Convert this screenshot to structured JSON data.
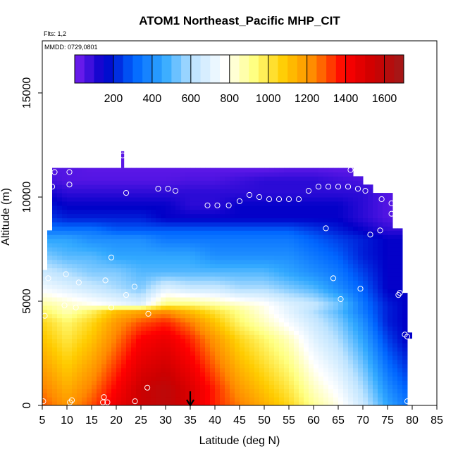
{
  "chart_data": {
    "type": "heatmap",
    "title": "ATOM1 Northeast_Pacific MHP_CIT",
    "flights_note": "Flts: 1,2",
    "dates_note": "MMDD: 0729,0801",
    "xlabel": "Latitude (deg N)",
    "ylabel": "Altitude (m)",
    "xlim": [
      5,
      85
    ],
    "ylim": [
      0,
      17500
    ],
    "x_ticks": [
      "5",
      "10",
      "15",
      "20",
      "25",
      "30",
      "35",
      "40",
      "45",
      "50",
      "55",
      "60",
      "65",
      "70",
      "75",
      "80",
      "85"
    ],
    "y_ticks": [
      "0",
      "5000",
      "10000",
      "15000"
    ],
    "colorbar": {
      "ticks": [
        "200",
        "400",
        "600",
        "800",
        "1000",
        "1200",
        "1400",
        "1600"
      ],
      "range": [
        0,
        1700
      ],
      "colors": [
        "#7a1ff0",
        "#0000c8",
        "#0066ff",
        "#33aaff",
        "#bfe4ff",
        "#ffffff",
        "#ffff80",
        "#ffcc00",
        "#ff8800",
        "#ff0000",
        "#cc0000",
        "#a01a1a"
      ]
    },
    "field": {
      "lat_range": [
        5,
        79
      ],
      "alt_range": [
        0,
        11500
      ],
      "mid_lat": [
        5,
        10,
        15,
        20,
        25,
        30,
        35,
        40,
        45,
        50,
        55,
        60,
        65,
        70,
        75,
        79
      ],
      "lower_lat": [
        5,
        10,
        15,
        20,
        25,
        30,
        35,
        40,
        45,
        50,
        55,
        60,
        65,
        70,
        75,
        79
      ],
      "lower_alt": [
        0,
        800,
        1600,
        2400,
        3200,
        4000,
        4600
      ],
      "lower_values": [
        [
          1300,
          1200,
          1300,
          1450,
          1550,
          1600,
          1500,
          1350,
          1250,
          1150,
          1050,
          900,
          800,
          650,
          450,
          350
        ],
        [
          1250,
          1150,
          1250,
          1400,
          1550,
          1600,
          1500,
          1350,
          1200,
          1100,
          1000,
          850,
          750,
          600,
          400,
          300
        ],
        [
          1200,
          1100,
          1200,
          1350,
          1500,
          1550,
          1450,
          1300,
          1150,
          1050,
          950,
          800,
          700,
          550,
          350,
          250
        ],
        [
          1150,
          1050,
          1150,
          1300,
          1450,
          1500,
          1400,
          1250,
          1100,
          1000,
          900,
          750,
          650,
          500,
          300,
          200
        ],
        [
          1100,
          1000,
          1100,
          1250,
          1400,
          1450,
          1350,
          1200,
          1050,
          950,
          850,
          700,
          600,
          450,
          250,
          150
        ],
        [
          1050,
          950,
          1050,
          1200,
          1300,
          1350,
          1250,
          1100,
          950,
          850,
          750,
          650,
          550,
          400,
          200,
          150
        ],
        [
          950,
          850,
          950,
          1100,
          1150,
          1200,
          1100,
          1000,
          900,
          800,
          700,
          600,
          500,
          350,
          200,
          150
        ]
      ],
      "mid_alt": [
        4800,
        5600,
        6400,
        7200,
        8000,
        8400
      ],
      "mid_values": [
        [
          900,
          850,
          800,
          750,
          700,
          950,
          950,
          900,
          850,
          800,
          700,
          650,
          550,
          350,
          200,
          150
        ],
        [
          750,
          700,
          650,
          600,
          550,
          700,
          650,
          650,
          600,
          600,
          550,
          500,
          400,
          300,
          150,
          150
        ],
        [
          650,
          600,
          550,
          550,
          500,
          500,
          500,
          500,
          500,
          500,
          450,
          400,
          350,
          250,
          150,
          150
        ],
        [
          550,
          500,
          500,
          450,
          450,
          450,
          450,
          400,
          400,
          400,
          400,
          350,
          300,
          200,
          150,
          150
        ],
        [
          450,
          450,
          400,
          400,
          400,
          350,
          350,
          350,
          350,
          350,
          350,
          300,
          250,
          200,
          150,
          150
        ],
        [
          350,
          350,
          350,
          300,
          300,
          300,
          300,
          300,
          300,
          300,
          300,
          250,
          200,
          150,
          100,
          100
        ]
      ],
      "upper_alt": [
        9000,
        9600,
        10200,
        10800,
        11300
      ],
      "upper_values": [
        [
          250,
          200,
          200,
          200,
          200,
          150,
          150,
          150,
          150,
          150,
          150,
          150,
          150,
          100,
          50,
          50
        ],
        [
          200,
          150,
          150,
          150,
          150,
          150,
          100,
          100,
          150,
          150,
          150,
          150,
          150,
          100,
          50,
          50
        ],
        [
          150,
          100,
          100,
          100,
          100,
          100,
          100,
          100,
          100,
          100,
          100,
          100,
          100,
          100,
          50,
          50
        ],
        [
          80,
          50,
          50,
          50,
          50,
          50,
          60,
          60,
          80,
          100,
          100,
          100,
          80,
          60,
          50,
          50
        ],
        [
          50,
          50,
          40,
          40,
          40,
          40,
          40,
          40,
          40,
          40,
          50,
          50,
          40,
          40,
          40,
          40
        ]
      ]
    },
    "points": [
      [
        5.2,
        200
      ],
      [
        10.6,
        150
      ],
      [
        11.0,
        250
      ],
      [
        17.5,
        400
      ],
      [
        17.3,
        150
      ],
      [
        18.2,
        150
      ],
      [
        23.8,
        200
      ],
      [
        26.3,
        850
      ],
      [
        5.5,
        4300
      ],
      [
        9.5,
        4800
      ],
      [
        11.8,
        4700
      ],
      [
        19.0,
        4700
      ],
      [
        26.5,
        4400
      ],
      [
        22.0,
        5300
      ],
      [
        23.7,
        5700
      ],
      [
        6.2,
        6100
      ],
      [
        9.8,
        6300
      ],
      [
        12.4,
        5900
      ],
      [
        17.8,
        6000
      ],
      [
        19.0,
        7100
      ],
      [
        64.0,
        6100
      ],
      [
        65.5,
        5100
      ],
      [
        69.5,
        5600
      ],
      [
        77.5,
        5400
      ],
      [
        77.2,
        5300
      ],
      [
        78.5,
        3400
      ],
      [
        79.0,
        3300
      ],
      [
        79.0,
        200
      ],
      [
        62.5,
        8500
      ],
      [
        71.5,
        8200
      ],
      [
        73.5,
        8400
      ],
      [
        7.0,
        10500
      ],
      [
        7.5,
        11200
      ],
      [
        10.5,
        10600
      ],
      [
        10.5,
        11200
      ],
      [
        22.0,
        10200
      ],
      [
        28.5,
        10400
      ],
      [
        30.5,
        10400
      ],
      [
        32.0,
        10300
      ],
      [
        38.5,
        9600
      ],
      [
        40.5,
        9600
      ],
      [
        42.8,
        9600
      ],
      [
        45.0,
        9800
      ],
      [
        47.0,
        10100
      ],
      [
        49.0,
        10000
      ],
      [
        51.0,
        9900
      ],
      [
        53.0,
        9900
      ],
      [
        55.0,
        9900
      ],
      [
        57.0,
        9900
      ],
      [
        59.0,
        10300
      ],
      [
        61.0,
        10500
      ],
      [
        63.0,
        10500
      ],
      [
        65.0,
        10500
      ],
      [
        67.0,
        10500
      ],
      [
        69.0,
        10400
      ],
      [
        70.5,
        10300
      ],
      [
        67.5,
        11300
      ],
      [
        73.8,
        9900
      ],
      [
        75.8,
        9700
      ],
      [
        75.8,
        9200
      ],
      [
        21.3,
        12000
      ]
    ],
    "marker_lat": 35
  }
}
